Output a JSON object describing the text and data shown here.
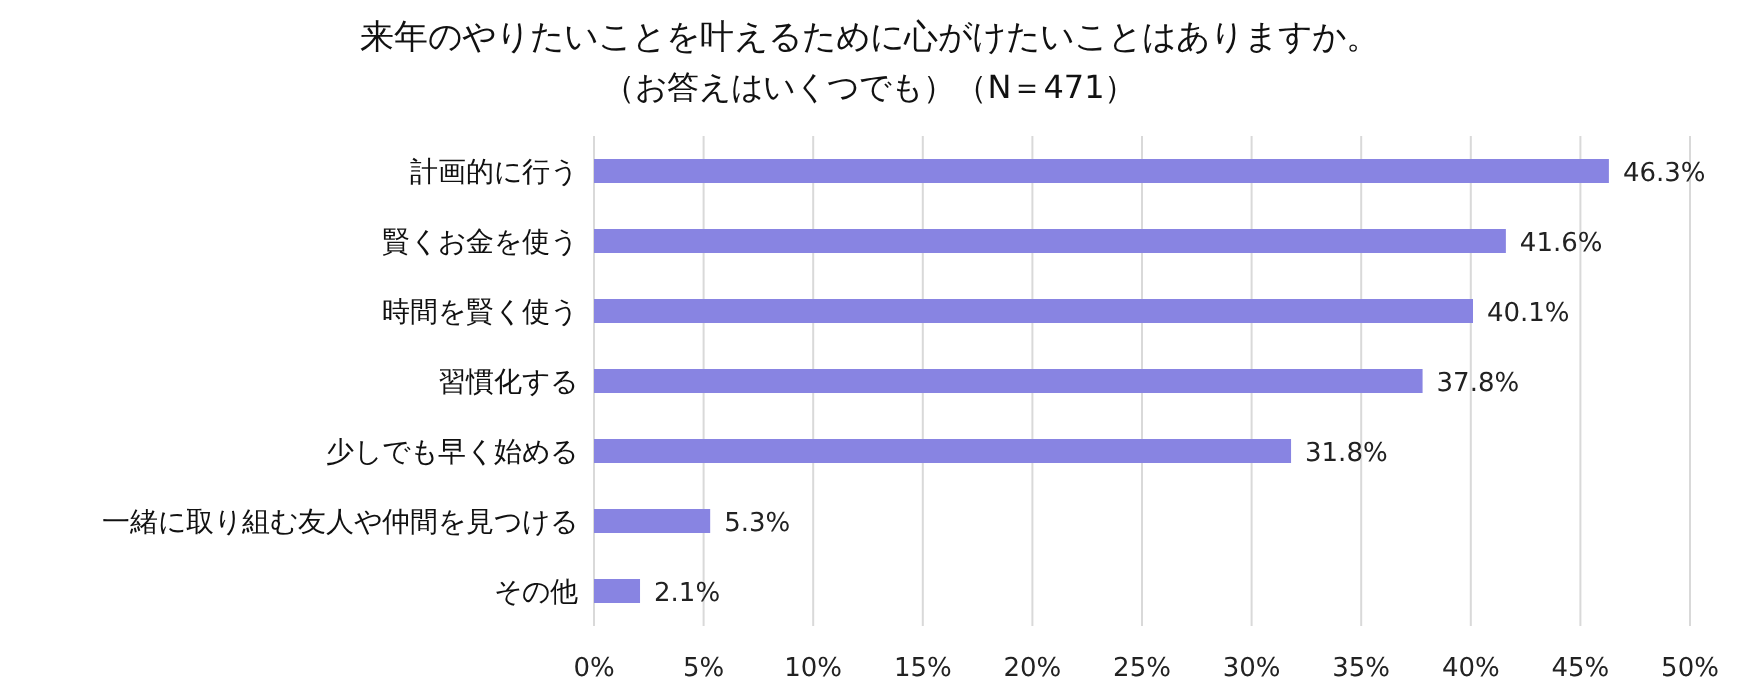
{
  "chart_data": {
    "type": "bar",
    "orientation": "horizontal",
    "title": "来年のやりたいことを叶えるために心がけたいことはありますか。",
    "subtitle": "（お答えはいくつでも）（N＝471）",
    "categories": [
      "計画的に行う",
      "賢くお金を使う",
      "時間を賢く使う",
      "習慣化する",
      "少しでも早く始める",
      "一緒に取り組む友人や仲間を見つける",
      "その他"
    ],
    "values": [
      46.3,
      41.6,
      40.1,
      37.8,
      31.8,
      5.3,
      2.1
    ],
    "value_labels": [
      "46.3%",
      "41.6%",
      "40.1%",
      "37.8%",
      "31.8%",
      "5.3%",
      "2.1%"
    ],
    "color": "#8884e2",
    "xlim": [
      0,
      50
    ],
    "xticks": [
      {
        "value": 0,
        "label": "0%"
      },
      {
        "value": 5,
        "label": "5%"
      },
      {
        "value": 10,
        "label": "10%"
      },
      {
        "value": 15,
        "label": "15%"
      },
      {
        "value": 20,
        "label": "20%"
      },
      {
        "value": 25,
        "label": "25%"
      },
      {
        "value": 30,
        "label": "30%"
      },
      {
        "value": 35,
        "label": "35%"
      },
      {
        "value": 40,
        "label": "40%"
      },
      {
        "value": 45,
        "label": "45%"
      },
      {
        "value": 50,
        "label": "50%"
      }
    ],
    "grid": "x"
  }
}
